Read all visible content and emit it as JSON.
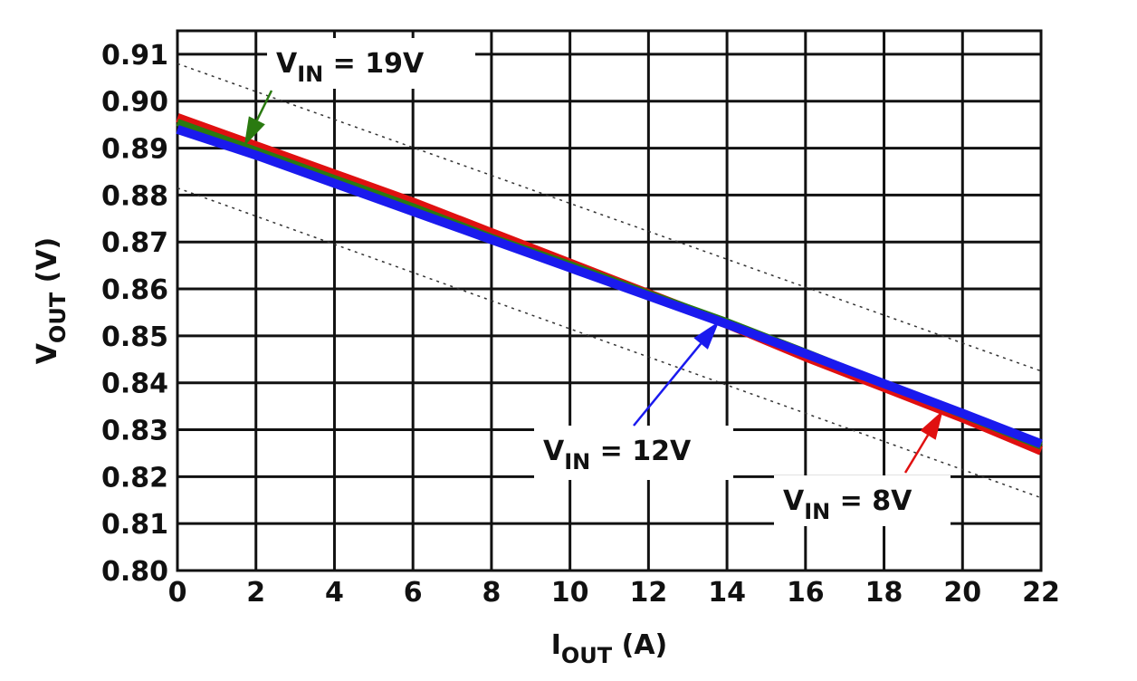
{
  "chart_data": {
    "type": "line",
    "title": "",
    "xlabel": {
      "main": "I",
      "sub": "OUT",
      "unit": " (A)"
    },
    "ylabel": {
      "main": "V",
      "sub": "OUT",
      "unit": " (V)"
    },
    "xlim": [
      0,
      22
    ],
    "ylim": [
      0.8,
      0.915
    ],
    "grid": true,
    "xticks": [
      "0",
      "2",
      "4",
      "6",
      "8",
      "10",
      "12",
      "14",
      "16",
      "18",
      "20",
      "22"
    ],
    "yticks": [
      "0.80",
      "0.81",
      "0.82",
      "0.83",
      "0.84",
      "0.85",
      "0.86",
      "0.87",
      "0.88",
      "0.89",
      "0.90",
      "0.91"
    ],
    "series": [
      {
        "name": "VIN = 8V",
        "color": "#e01010",
        "x": [
          0,
          2,
          4,
          6,
          8,
          10,
          12,
          14,
          16,
          18,
          20,
          22
        ],
        "y": [
          0.8965,
          0.8905,
          0.8845,
          0.8785,
          0.872,
          0.8655,
          0.859,
          0.8525,
          0.8455,
          0.839,
          0.8325,
          0.8255
        ]
      },
      {
        "name": "VIN = 19V",
        "color": "#2a7a10",
        "x": [
          0,
          2,
          4,
          6,
          8,
          10,
          12,
          14,
          16,
          18,
          20,
          22
        ],
        "y": [
          0.8955,
          0.8895,
          0.8835,
          0.8775,
          0.871,
          0.8652,
          0.859,
          0.853,
          0.8465,
          0.8398,
          0.8332,
          0.8265
        ]
      },
      {
        "name": "VIN = 12V",
        "color": "#1a1aee",
        "x": [
          0,
          2,
          4,
          6,
          8,
          10,
          12,
          14,
          16,
          18,
          20,
          22
        ],
        "y": [
          0.894,
          0.8885,
          0.8825,
          0.8765,
          0.8705,
          0.8645,
          0.8585,
          0.8525,
          0.8462,
          0.8398,
          0.8335,
          0.827
        ]
      }
    ],
    "limit_lines": [
      {
        "name": "upper-limit",
        "x": [
          0,
          22
        ],
        "y": [
          0.908,
          0.8425
        ]
      },
      {
        "name": "lower-limit",
        "x": [
          0,
          22
        ],
        "y": [
          0.8815,
          0.8155
        ]
      }
    ],
    "annotations": [
      {
        "main": "V",
        "sub": "IN",
        "rest": " = 19V",
        "series": 1,
        "arrow_x": 1.7
      },
      {
        "main": "V",
        "sub": "IN",
        "rest": " = 12V",
        "series": 2,
        "arrow_x": 13.8
      },
      {
        "main": "V",
        "sub": "IN",
        "rest": " = 8V",
        "series": 0,
        "arrow_x": 19.5
      }
    ]
  }
}
